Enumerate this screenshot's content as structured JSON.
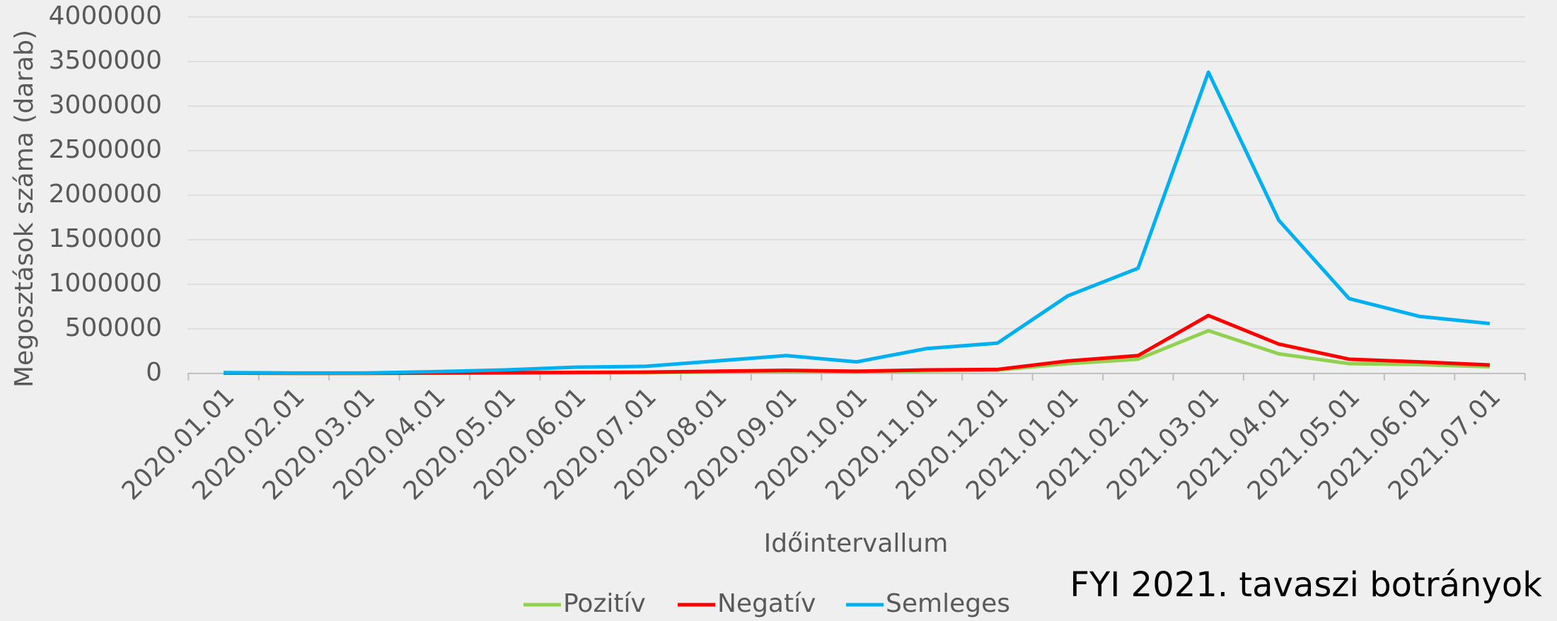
{
  "chart_data": {
    "type": "line",
    "x_label": "Időintervallum",
    "y_label": "Megosztások száma (darab)",
    "annotation": "FYI 2021. tavaszi botrányok",
    "categories": [
      "2020.01.01",
      "2020.02.01",
      "2020.03.01",
      "2020.04.01",
      "2020.05.01",
      "2020.06.01",
      "2020.07.01",
      "2020.08.01",
      "2020.09.01",
      "2020.10.01",
      "2020.11.01",
      "2020.12.01",
      "2021.01.01",
      "2021.02.01",
      "2021.03.01",
      "2021.04.01",
      "2021.05.01",
      "2021.06.01",
      "2021.07.01"
    ],
    "series": [
      {
        "name": "Pozitív",
        "color": "#92d050",
        "values": [
          3000,
          1000,
          1000,
          3000,
          5000,
          8000,
          10000,
          18000,
          25000,
          18000,
          30000,
          38000,
          110000,
          160000,
          480000,
          220000,
          110000,
          100000,
          75000
        ]
      },
      {
        "name": "Negatív",
        "color": "#ff0000",
        "values": [
          5000,
          2000,
          2000,
          5000,
          8000,
          12000,
          15000,
          25000,
          35000,
          25000,
          40000,
          45000,
          140000,
          200000,
          650000,
          330000,
          160000,
          130000,
          95000
        ]
      },
      {
        "name": "Semleges",
        "color": "#00b0f0",
        "values": [
          10000,
          5000,
          5000,
          20000,
          40000,
          70000,
          80000,
          140000,
          200000,
          130000,
          280000,
          340000,
          870000,
          1180000,
          3380000,
          1720000,
          840000,
          640000,
          560000
        ]
      }
    ],
    "ylim": [
      0,
      4000000
    ],
    "yticks": [
      0,
      500000,
      1000000,
      1500000,
      2000000,
      2500000,
      3000000,
      3500000,
      4000000
    ],
    "grid": true,
    "legend": "bottom"
  }
}
